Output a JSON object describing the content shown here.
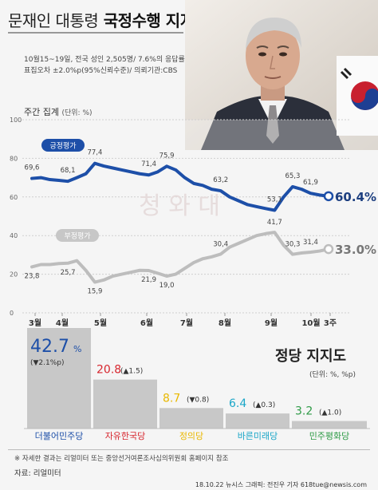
{
  "header": {
    "title_prefix": "문재인 대통령",
    "title_main": "국정수행 지지도",
    "survey_line1": "10월15~19일, 전국 성인 2,505명/ 7.6%의 응답률",
    "survey_line2": "표집오차 ±2.0%p(95%신뢰수준)/ 의뢰기관:CBS"
  },
  "weekly": {
    "title": "주간 집계",
    "unit": "(단위: %)"
  },
  "watermark": "청 와 대",
  "chart_data": [
    {
      "type": "line",
      "title": "국정수행 지지도",
      "ylabel": "",
      "ylim": [
        0,
        100
      ],
      "yticks": [
        "0",
        "20",
        "40",
        "60",
        "80",
        "100"
      ],
      "x_months": [
        "3월",
        "4월",
        "5월",
        "6월",
        "7월",
        "8월",
        "9월",
        "10월",
        "3주"
      ],
      "grid": true,
      "series": [
        {
          "name": "긍정평가",
          "color": "#1d4fa8",
          "values": [
            69.6,
            68.1,
            77.4,
            71.4,
            75.9,
            63.2,
            53.1,
            65.3,
            61.9,
            60.4
          ],
          "labels": [
            "69,6",
            "68,1",
            "77,4",
            "71,4",
            "75,9",
            "63,2",
            "53,1",
            "65,3",
            "61,9",
            "60.4%"
          ]
        },
        {
          "name": "부정평가",
          "color": "#bdbdbd",
          "values": [
            23.8,
            25.7,
            15.9,
            21.9,
            19.0,
            30.4,
            41.7,
            30.3,
            31.4,
            33.0
          ],
          "labels": [
            "23,8",
            "25,7",
            "15,9",
            "21,9",
            "19,0",
            "30,4",
            "41,7",
            "30,3",
            "31,4",
            "33.0%"
          ]
        }
      ]
    },
    {
      "type": "bar",
      "title": "정당 지지도",
      "unit": "(단위: %, %p)",
      "categories": [
        "더불어민주당",
        "자유한국당",
        "정의당",
        "바른미래당",
        "민주평화당"
      ],
      "values": [
        42.7,
        20.8,
        8.7,
        6.4,
        3.2
      ],
      "value_labels": [
        "42.7",
        "20.8",
        "8.7",
        "6.4",
        "3.2"
      ],
      "changes": [
        "(▼2.1%p)",
        "(▲1.5)",
        "(▼0.8)",
        "(▲0.3)",
        "(▲1.0)"
      ],
      "colors": [
        "#1d4fa8",
        "#d7262e",
        "#e9b800",
        "#1aa6c8",
        "#2f9b47"
      ]
    }
  ],
  "footer": {
    "note": "※ 자세한 결과는 리얼미터 또는 중앙선거여론조사심의위원회 홈페이지 참조",
    "source": "자료: 리얼미터",
    "credit": "18.10.22  뉴시스 그래픽: 전진우 기자  618tue@newsis.com"
  }
}
